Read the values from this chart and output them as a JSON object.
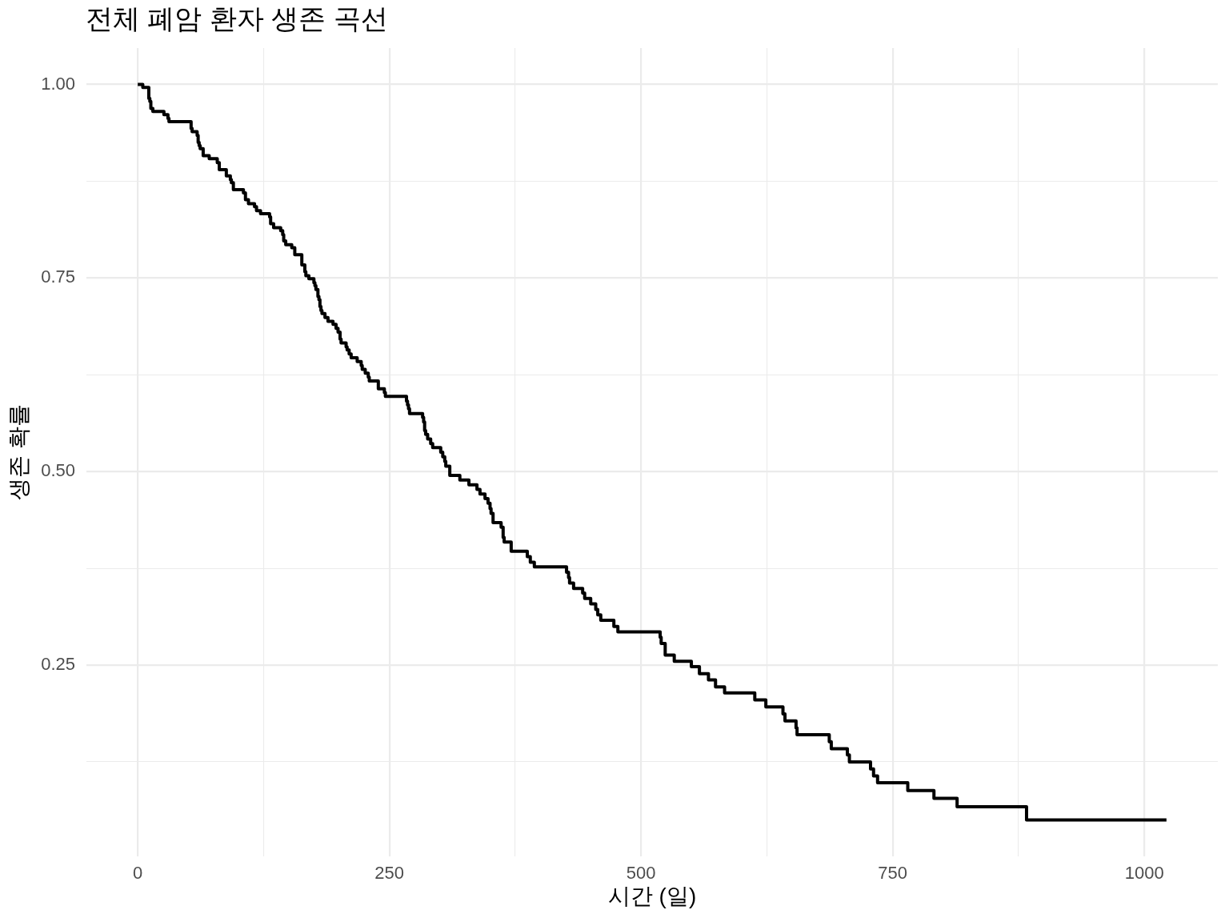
{
  "chart_data": {
    "type": "step",
    "title": "전체 폐암 환자 생존 곡선",
    "xlabel": "시간 (일)",
    "ylabel": "생존 확률",
    "x": [
      0,
      5,
      11,
      12,
      13,
      15,
      26,
      30,
      31,
      53,
      54,
      59,
      60,
      61,
      62,
      65,
      71,
      79,
      81,
      88,
      92,
      93,
      95,
      105,
      107,
      110,
      116,
      118,
      122,
      131,
      132,
      135,
      142,
      144,
      145,
      147,
      153,
      156,
      163,
      166,
      167,
      170,
      175,
      176,
      177,
      179,
      180,
      181,
      182,
      183,
      186,
      189,
      194,
      197,
      199,
      201,
      202,
      207,
      208,
      210,
      212,
      218,
      222,
      223,
      226,
      229,
      230,
      239,
      245,
      246,
      267,
      268,
      269,
      270,
      283,
      284,
      285,
      286,
      288,
      291,
      293,
      301,
      303,
      305,
      306,
      310,
      320,
      329,
      337,
      340,
      345,
      348,
      350,
      351,
      353,
      361,
      363,
      364,
      371,
      387,
      390,
      394,
      426,
      428,
      429,
      433,
      442,
      444,
      450,
      455,
      457,
      460,
      473,
      477,
      519,
      520,
      524,
      533,
      550,
      558,
      567,
      574,
      583,
      613,
      624,
      641,
      643,
      654,
      655,
      687,
      689,
      705,
      707,
      728,
      731,
      735,
      765,
      791,
      814,
      883,
      1022
    ],
    "series": [
      {
        "color": "#000000",
        "values": [
          1,
          0.996,
          0.982,
          0.978,
          0.969,
          0.965,
          0.961,
          0.956,
          0.952,
          0.943,
          0.939,
          0.934,
          0.925,
          0.921,
          0.917,
          0.908,
          0.904,
          0.899,
          0.89,
          0.882,
          0.877,
          0.873,
          0.864,
          0.86,
          0.851,
          0.846,
          0.842,
          0.837,
          0.833,
          0.829,
          0.82,
          0.815,
          0.811,
          0.806,
          0.798,
          0.793,
          0.789,
          0.78,
          0.767,
          0.758,
          0.753,
          0.749,
          0.744,
          0.74,
          0.735,
          0.726,
          0.722,
          0.713,
          0.708,
          0.704,
          0.699,
          0.694,
          0.69,
          0.685,
          0.68,
          0.671,
          0.666,
          0.661,
          0.657,
          0.652,
          0.647,
          0.642,
          0.637,
          0.632,
          0.627,
          0.622,
          0.617,
          0.607,
          0.602,
          0.597,
          0.591,
          0.586,
          0.581,
          0.575,
          0.57,
          0.564,
          0.553,
          0.548,
          0.542,
          0.536,
          0.531,
          0.525,
          0.519,
          0.513,
          0.507,
          0.495,
          0.489,
          0.483,
          0.477,
          0.471,
          0.465,
          0.459,
          0.452,
          0.446,
          0.434,
          0.428,
          0.415,
          0.409,
          0.397,
          0.39,
          0.383,
          0.377,
          0.37,
          0.363,
          0.356,
          0.349,
          0.343,
          0.336,
          0.329,
          0.322,
          0.315,
          0.308,
          0.3,
          0.293,
          0.286,
          0.278,
          0.263,
          0.255,
          0.248,
          0.239,
          0.231,
          0.222,
          0.214,
          0.205,
          0.196,
          0.187,
          0.178,
          0.169,
          0.16,
          0.151,
          0.142,
          0.134,
          0.125,
          0.116,
          0.107,
          0.098,
          0.088,
          0.078,
          0.067,
          0.05,
          0.05
        ]
      }
    ],
    "xlim": [
      -51,
      1073
    ],
    "ylim": [
      0.003,
      1.047
    ],
    "xticks": [
      0,
      {
        "value": 125,
        "label": null
      },
      250,
      {
        "value": 375,
        "label": null
      },
      500,
      {
        "value": 625,
        "label": null
      },
      750,
      {
        "value": 875,
        "label": null
      },
      1000
    ],
    "yticks": [
      {
        "value": 0.125,
        "label": null
      },
      {
        "value": 0.25,
        "label": "0.25"
      },
      {
        "value": 0.375,
        "label": null
      },
      {
        "value": 0.5,
        "label": "0.50"
      },
      {
        "value": 0.625,
        "label": null
      },
      {
        "value": 0.75,
        "label": "0.75"
      },
      {
        "value": 0.875,
        "label": null
      },
      {
        "value": 1,
        "label": "1.00"
      }
    ],
    "grid": true
  }
}
